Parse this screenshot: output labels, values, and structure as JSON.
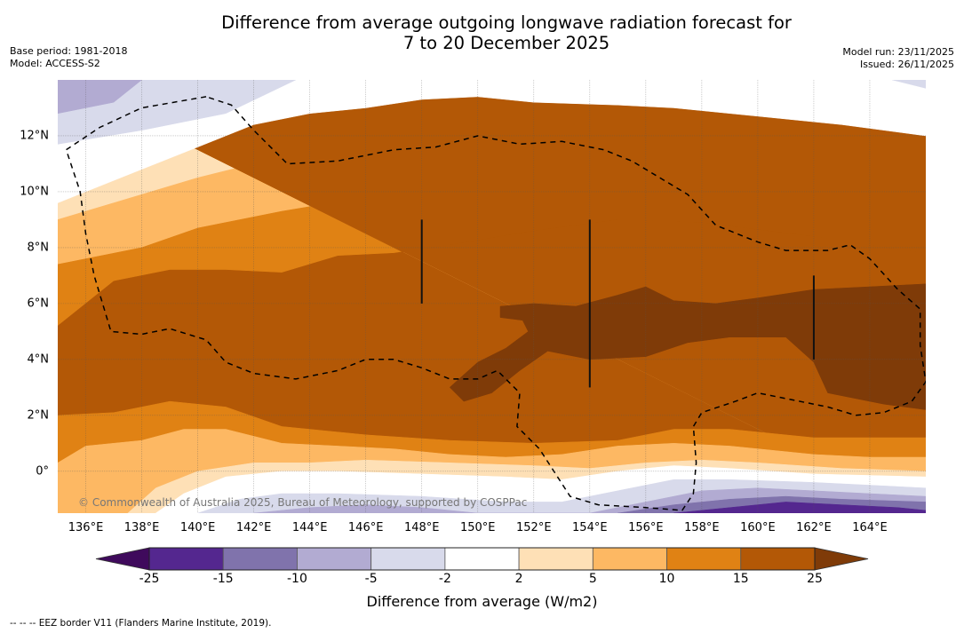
{
  "title_line1": "Difference from average outgoing longwave radiation forecast for",
  "title_line2": "7 to 20 December 2025",
  "meta_left": {
    "base_period": "Base period: 1981-2018",
    "model": "Model: ACCESS-S2"
  },
  "meta_right": {
    "model_run": "Model run: 23/11/2025",
    "issued": "Issued: 26/11/2025"
  },
  "copyright": "© Commonwealth of Australia 2025, Bureau of Meteorology, supported by COSPPac",
  "footnote": "--  --  -- EEZ border V11 (Flanders Marine Institute, 2019).",
  "map_extent": {
    "lon": [
      135,
      166
    ],
    "lat": [
      -1.5,
      14
    ]
  },
  "x_ticks": [
    {
      "lon": 136,
      "label": "136°E"
    },
    {
      "lon": 138,
      "label": "138°E"
    },
    {
      "lon": 140,
      "label": "140°E"
    },
    {
      "lon": 142,
      "label": "142°E"
    },
    {
      "lon": 144,
      "label": "144°E"
    },
    {
      "lon": 146,
      "label": "146°E"
    },
    {
      "lon": 148,
      "label": "148°E"
    },
    {
      "lon": 150,
      "label": "150°E"
    },
    {
      "lon": 152,
      "label": "152°E"
    },
    {
      "lon": 154,
      "label": "154°E"
    },
    {
      "lon": 156,
      "label": "156°E"
    },
    {
      "lon": 158,
      "label": "158°E"
    },
    {
      "lon": 160,
      "label": "160°E"
    },
    {
      "lon": 162,
      "label": "162°E"
    },
    {
      "lon": 164,
      "label": "164°E"
    }
  ],
  "y_ticks": [
    {
      "lat": 12,
      "label": "12°N"
    },
    {
      "lat": 10,
      "label": "10°N"
    },
    {
      "lat": 8,
      "label": "8°N"
    },
    {
      "lat": 6,
      "label": "6°N"
    },
    {
      "lat": 4,
      "label": "4°N"
    },
    {
      "lat": 2,
      "label": "2°N"
    },
    {
      "lat": 0,
      "label": "0°"
    }
  ],
  "colorbar": {
    "title": "Difference from average (W/m2)",
    "under_color": "#3f0a5c",
    "over_color": "#7f3b08",
    "bins": [
      {
        "from": -25,
        "to": -15,
        "color": "#54278f"
      },
      {
        "from": -15,
        "to": -10,
        "color": "#8073ac"
      },
      {
        "from": -10,
        "to": -5,
        "color": "#b2abd2"
      },
      {
        "from": -5,
        "to": -2,
        "color": "#d8daeb"
      },
      {
        "from": -2,
        "to": 2,
        "color": "#ffffff"
      },
      {
        "from": 2,
        "to": 5,
        "color": "#fee0b6"
      },
      {
        "from": 5,
        "to": 10,
        "color": "#fdb863"
      },
      {
        "from": 10,
        "to": 15,
        "color": "#e08214"
      },
      {
        "from": 15,
        "to": 25,
        "color": "#b35806"
      }
    ],
    "tick_labels": [
      "-25",
      "-15",
      "-10",
      "-5",
      "-2",
      "2",
      "5",
      "10",
      "15",
      "25"
    ]
  },
  "map_regions": [
    {
      "name": "band-2-5",
      "color": "#fee0b6",
      "points": [
        [
          135,
          14
        ],
        [
          166,
          14
        ],
        [
          166,
          12.0
        ],
        [
          163,
          12.4
        ],
        [
          160,
          12.7
        ],
        [
          157,
          13.0
        ],
        [
          155,
          13.1
        ],
        [
          152,
          13.2
        ],
        [
          150,
          13.4
        ],
        [
          148,
          13.3
        ],
        [
          146,
          13.0
        ],
        [
          144,
          12.8
        ],
        [
          142,
          12.4
        ],
        [
          140,
          11.6
        ],
        [
          138,
          10.8
        ],
        [
          135,
          9.6
        ],
        [
          135,
          -1.5
        ],
        [
          166,
          -1.5
        ]
      ]
    },
    {
      "name": "band-5-10",
      "color": "#fdb863",
      "points": [
        [
          135,
          14
        ],
        [
          166,
          14
        ],
        [
          166,
          10.6
        ],
        [
          163,
          11.6
        ],
        [
          160,
          11.8
        ],
        [
          157,
          12.2
        ],
        [
          154,
          12.4
        ],
        [
          151,
          12.1
        ],
        [
          148,
          12.0
        ],
        [
          146,
          12.1
        ],
        [
          144,
          12.2
        ],
        [
          142,
          11.0
        ],
        [
          140,
          10.5
        ],
        [
          138,
          9.9
        ],
        [
          135,
          9.0
        ],
        [
          135,
          -1.5
        ],
        [
          166,
          -1.5
        ]
      ]
    },
    {
      "name": "band-10-15",
      "color": "#e08214",
      "points": [
        [
          135,
          14
        ],
        [
          166,
          14
        ],
        [
          166,
          8.6
        ],
        [
          162,
          9.4
        ],
        [
          158,
          10.0
        ],
        [
          155,
          10.4
        ],
        [
          152,
          10.4
        ],
        [
          149,
          10.2
        ],
        [
          146,
          9.8
        ],
        [
          143,
          9.3
        ],
        [
          140,
          8.7
        ],
        [
          138,
          8.0
        ],
        [
          135,
          7.4
        ],
        [
          135,
          -1.5
        ],
        [
          166,
          -1.5
        ]
      ]
    },
    {
      "name": "band-15-25",
      "color": "#b35806",
      "points": [
        [
          135,
          14
        ],
        [
          166,
          14
        ],
        [
          166,
          7.8
        ],
        [
          162,
          8.4
        ],
        [
          158,
          8.9
        ],
        [
          155,
          9.0
        ],
        [
          152,
          8.6
        ],
        [
          149,
          8.1
        ],
        [
          147,
          7.8
        ],
        [
          145,
          7.7
        ],
        [
          143,
          7.1
        ],
        [
          141,
          7.2
        ],
        [
          139,
          7.2
        ],
        [
          137,
          6.8
        ],
        [
          135,
          5.2
        ],
        [
          135,
          -1.5
        ],
        [
          166,
          -1.5
        ]
      ]
    },
    {
      "name": "band-10-15-south",
      "color": "#e08214",
      "points": [
        [
          135,
          2.0
        ],
        [
          137,
          2.1
        ],
        [
          139,
          2.5
        ],
        [
          141,
          2.3
        ],
        [
          143,
          1.6
        ],
        [
          146,
          1.3
        ],
        [
          149,
          1.1
        ],
        [
          152,
          1.0
        ],
        [
          155,
          1.1
        ],
        [
          157,
          1.5
        ],
        [
          159,
          1.5
        ],
        [
          162,
          1.2
        ],
        [
          166,
          1.2
        ],
        [
          166,
          -1.5
        ],
        [
          135,
          -1.5
        ]
      ]
    },
    {
      "name": "band-5-10-south",
      "color": "#fdb863",
      "points": [
        [
          135,
          0.3
        ],
        [
          136,
          0.9
        ],
        [
          138,
          1.1
        ],
        [
          139.5,
          1.5
        ],
        [
          141,
          1.5
        ],
        [
          143,
          1.0
        ],
        [
          145,
          0.9
        ],
        [
          147,
          0.8
        ],
        [
          149,
          0.6
        ],
        [
          151,
          0.5
        ],
        [
          153,
          0.6
        ],
        [
          155,
          0.9
        ],
        [
          157,
          1.0
        ],
        [
          159,
          0.9
        ],
        [
          162,
          0.6
        ],
        [
          164,
          0.5
        ],
        [
          166,
          0.5
        ],
        [
          166,
          -1.5
        ],
        [
          135,
          -1.5
        ]
      ]
    },
    {
      "name": "band-2-5-south",
      "color": "#fee0b6",
      "points": [
        [
          137.5,
          -1.5
        ],
        [
          138.5,
          -0.6
        ],
        [
          140,
          0.0
        ],
        [
          142,
          0.3
        ],
        [
          144,
          0.3
        ],
        [
          146,
          0.4
        ],
        [
          149,
          0.3
        ],
        [
          152,
          0.2
        ],
        [
          154,
          0.1
        ],
        [
          156,
          0.3
        ],
        [
          158,
          0.4
        ],
        [
          160,
          0.3
        ],
        [
          163,
          0.1
        ],
        [
          166,
          0.0
        ],
        [
          166,
          -1.5
        ]
      ]
    },
    {
      "name": "band-neg2-2-south",
      "color": "#ffffff",
      "points": [
        [
          138.5,
          -1.5
        ],
        [
          139.5,
          -0.8
        ],
        [
          141,
          -0.2
        ],
        [
          143,
          0.0
        ],
        [
          145,
          0.0
        ],
        [
          148,
          -0.1
        ],
        [
          151,
          -0.2
        ],
        [
          153,
          -0.3
        ],
        [
          155,
          0.0
        ],
        [
          157,
          0.2
        ],
        [
          159,
          0.1
        ],
        [
          162,
          -0.1
        ],
        [
          166,
          -0.2
        ],
        [
          166,
          -1.5
        ]
      ]
    },
    {
      "name": "band-neg5-neg2-south",
      "color": "#d8daeb",
      "points": [
        [
          140,
          -1.5
        ],
        [
          141.5,
          -1.0
        ],
        [
          143,
          -0.8
        ],
        [
          145,
          -0.8
        ],
        [
          148,
          -0.9
        ],
        [
          151,
          -1.1
        ],
        [
          153,
          -1.1
        ],
        [
          155,
          -0.7
        ],
        [
          157,
          -0.3
        ],
        [
          159,
          -0.3
        ],
        [
          162,
          -0.4
        ],
        [
          164,
          -0.5
        ],
        [
          166,
          -0.6
        ],
        [
          166,
          -1.5
        ]
      ]
    },
    {
      "name": "band-neg10-neg5-south",
      "color": "#b2abd2",
      "points": [
        [
          142,
          -1.5
        ],
        [
          144,
          -1.3
        ],
        [
          146,
          -1.2
        ],
        [
          148,
          -1.3
        ],
        [
          150,
          -1.5
        ],
        [
          154,
          -1.5
        ],
        [
          156,
          -1.1
        ],
        [
          158,
          -0.7
        ],
        [
          160,
          -0.6
        ],
        [
          162,
          -0.7
        ],
        [
          164,
          -0.8
        ],
        [
          166,
          -0.9
        ],
        [
          166,
          -1.5
        ]
      ]
    },
    {
      "name": "band-neg15-neg10-south",
      "color": "#8073ac",
      "points": [
        [
          155,
          -1.5
        ],
        [
          157,
          -1.2
        ],
        [
          159,
          -1.0
        ],
        [
          161,
          -0.9
        ],
        [
          163,
          -1.0
        ],
        [
          166,
          -1.1
        ],
        [
          166,
          -1.5
        ]
      ]
    },
    {
      "name": "band-neg25-neg15-south",
      "color": "#54278f",
      "points": [
        [
          157,
          -1.5
        ],
        [
          159,
          -1.3
        ],
        [
          161,
          -1.1
        ],
        [
          163,
          -1.2
        ],
        [
          165,
          -1.3
        ],
        [
          166,
          -1.4
        ],
        [
          166,
          -1.5
        ]
      ]
    },
    {
      "name": "band-white-north",
      "color": "#ffffff",
      "points": [
        [
          135,
          14
        ],
        [
          166,
          14
        ],
        [
          166,
          12.0
        ],
        [
          163,
          12.4
        ],
        [
          160,
          12.7
        ],
        [
          157,
          13.0
        ],
        [
          155,
          13.1
        ],
        [
          152,
          13.2
        ],
        [
          150,
          13.4
        ],
        [
          148,
          13.3
        ],
        [
          146,
          13.0
        ],
        [
          144,
          12.8
        ],
        [
          142,
          12.4
        ],
        [
          140,
          11.6
        ],
        [
          138,
          10.8
        ],
        [
          135,
          9.6
        ]
      ]
    },
    {
      "name": "band-neg5-neg2-north",
      "color": "#d8daeb",
      "points": [
        [
          135,
          14
        ],
        [
          143.5,
          14
        ],
        [
          141,
          12.8
        ],
        [
          138,
          12.2
        ],
        [
          135,
          11.7
        ]
      ]
    },
    {
      "name": "band-neg10-neg5-north",
      "color": "#b2abd2",
      "points": [
        [
          135,
          14
        ],
        [
          138,
          14
        ],
        [
          137,
          13.2
        ],
        [
          135,
          12.8
        ]
      ]
    },
    {
      "name": "band-neg5-neg2-ne",
      "color": "#d8daeb",
      "points": [
        [
          164.8,
          14
        ],
        [
          166,
          14
        ],
        [
          166,
          13.7
        ]
      ]
    },
    {
      "name": "band-gt25",
      "color": "#7f3b08",
      "points": [
        [
          150.8,
          5.9
        ],
        [
          152,
          6.0
        ],
        [
          153.5,
          5.9
        ],
        [
          155,
          6.3
        ],
        [
          156,
          6.6
        ],
        [
          157,
          6.1
        ],
        [
          158.5,
          6.0
        ],
        [
          160,
          6.2
        ],
        [
          162,
          6.5
        ],
        [
          164,
          6.6
        ],
        [
          166,
          6.7
        ],
        [
          166,
          2.2
        ],
        [
          164.5,
          2.4
        ],
        [
          162.5,
          2.8
        ],
        [
          162,
          3.9
        ],
        [
          161,
          4.8
        ],
        [
          159,
          4.8
        ],
        [
          157.5,
          4.6
        ],
        [
          156,
          4.1
        ],
        [
          154,
          4.0
        ],
        [
          152.5,
          4.3
        ],
        [
          151.5,
          3.6
        ],
        [
          150.5,
          2.8
        ],
        [
          149.5,
          2.5
        ],
        [
          149.0,
          3.0
        ],
        [
          150.0,
          3.9
        ],
        [
          151.0,
          4.4
        ],
        [
          151.8,
          5.0
        ],
        [
          151.6,
          5.4
        ],
        [
          150.8,
          5.5
        ]
      ]
    }
  ],
  "eez_lines": [
    [
      [
        140.3,
        13.4
      ],
      [
        138,
        13.0
      ],
      [
        136.5,
        12.3
      ],
      [
        135.3,
        11.5
      ],
      [
        135.8,
        10.0
      ],
      [
        136,
        8.5
      ],
      [
        136.3,
        7.0
      ],
      [
        136.9,
        5.0
      ],
      [
        138,
        4.9
      ],
      [
        139,
        5.1
      ],
      [
        140.3,
        4.7
      ],
      [
        141,
        3.9
      ],
      [
        142,
        3.5
      ],
      [
        143.5,
        3.3
      ],
      [
        145,
        3.6
      ],
      [
        146,
        4.0
      ],
      [
        147,
        4.0
      ],
      [
        148,
        3.7
      ],
      [
        149,
        3.3
      ],
      [
        150,
        3.3
      ],
      [
        150.7,
        3.6
      ],
      [
        151.5,
        2.8
      ],
      [
        151.4,
        1.6
      ],
      [
        152.2,
        0.8
      ],
      [
        153.3,
        -0.9
      ],
      [
        154.3,
        -1.2
      ],
      [
        156,
        -1.3
      ],
      [
        157.3,
        -1.4
      ],
      [
        157.7,
        -0.8
      ],
      [
        157.8,
        0.3
      ],
      [
        157.7,
        1.6
      ],
      [
        158,
        2.1
      ],
      [
        159.2,
        2.5
      ],
      [
        160,
        2.8
      ],
      [
        161,
        2.6
      ],
      [
        162.5,
        2.3
      ],
      [
        163.5,
        2.0
      ],
      [
        164.5,
        2.1
      ],
      [
        165.5,
        2.5
      ],
      [
        166,
        3.2
      ],
      [
        165.8,
        4.5
      ],
      [
        165.8,
        5.8
      ],
      [
        165,
        6.5
      ],
      [
        164,
        7.6
      ],
      [
        163.3,
        8.1
      ],
      [
        162.5,
        7.9
      ],
      [
        161,
        7.9
      ],
      [
        160,
        8.2
      ],
      [
        158.5,
        8.8
      ],
      [
        157.5,
        9.9
      ],
      [
        156.5,
        10.5
      ],
      [
        155.5,
        11.1
      ],
      [
        154.5,
        11.5
      ],
      [
        153,
        11.8
      ],
      [
        151.5,
        11.7
      ],
      [
        150,
        12.0
      ],
      [
        148.5,
        11.6
      ],
      [
        147,
        11.5
      ],
      [
        145,
        11.1
      ],
      [
        143.2,
        11.0
      ],
      [
        142,
        12.2
      ],
      [
        141.2,
        13.1
      ],
      [
        140.3,
        13.4
      ]
    ]
  ],
  "vertical_lines": [
    {
      "lon": 148,
      "lat_from": 6.0,
      "lat_to": 9.0
    },
    {
      "lon": 154,
      "lat_from": 3.0,
      "lat_to": 9.0
    },
    {
      "lon": 162,
      "lat_from": 4.0,
      "lat_to": 7.0
    }
  ]
}
